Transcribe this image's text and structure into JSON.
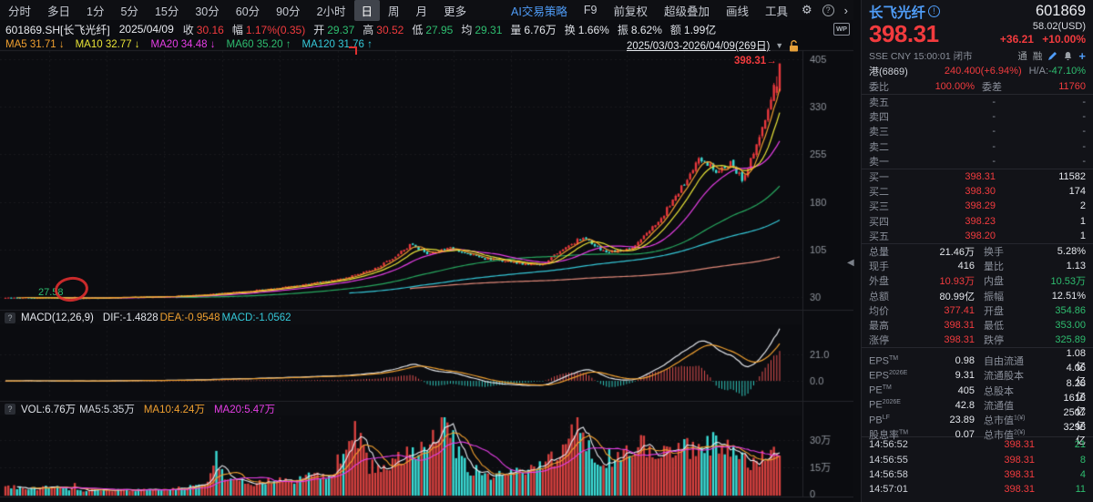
{
  "colors": {
    "red": "#f23b3e",
    "green": "#2ebd6f",
    "up_candle": "#e8383d",
    "down_candle": "#3bdcd6",
    "ma5": "#f0a030",
    "ma10": "#e8e337",
    "ma20": "#e53ee5",
    "ma60": "#27a85f",
    "ma120": "#35c8d8",
    "ma_long": "#e08878",
    "accent_blue": "#4f9cf7",
    "axis_text": "#8f949c",
    "grid": "rgba(255,255,255,0.06)"
  },
  "icons": {
    "gear": "⚙",
    "help": "?",
    "chevron": "›",
    "dropdown": "▼",
    "collapse": "◀",
    "arrow_right": "→",
    "q": "?",
    "plus": "+",
    "info": "!"
  },
  "toolbar": {
    "left": [
      {
        "label": "分时"
      },
      {
        "label": "多日"
      },
      {
        "label": "1分"
      },
      {
        "label": "5分"
      },
      {
        "label": "15分"
      },
      {
        "label": "30分"
      },
      {
        "label": "60分"
      },
      {
        "label": "90分"
      },
      {
        "label": "2小时"
      },
      {
        "label": "日",
        "active": true
      },
      {
        "label": "周"
      },
      {
        "label": "月"
      },
      {
        "label": "更多"
      }
    ],
    "right": [
      {
        "label": "AI交易策略",
        "blue": true
      },
      {
        "label": "F9"
      },
      {
        "label": "前复权"
      },
      {
        "label": "超级叠加"
      },
      {
        "label": "画线"
      },
      {
        "label": "工具"
      }
    ]
  },
  "info": {
    "symbol": "601869.SH[长飞光纤]",
    "date": "2025/04/09",
    "fields": [
      {
        "l": "收",
        "v": "30.16",
        "c": "r"
      },
      {
        "l": "幅",
        "v": "1.17%(0.35)",
        "c": "r"
      },
      {
        "l": "开",
        "v": "29.37",
        "c": "g"
      },
      {
        "l": "高",
        "v": "30.52",
        "c": "r"
      },
      {
        "l": "低",
        "v": "27.95",
        "c": "g"
      },
      {
        "l": "均",
        "v": "29.31",
        "c": "g"
      },
      {
        "l": "量",
        "v": "6.76万",
        "c": "w"
      },
      {
        "l": "换",
        "v": "1.66%",
        "c": "w"
      },
      {
        "l": "振",
        "v": "8.62%",
        "c": "w"
      },
      {
        "l": "额",
        "v": "1.99亿",
        "c": "w"
      }
    ],
    "wp": "WP"
  },
  "ma_header": {
    "items": [
      {
        "text": "MA5 31.71",
        "arrow": "↓",
        "color": "#f0a030"
      },
      {
        "text": "MA10 32.77",
        "arrow": "↓",
        "color": "#e8e337"
      },
      {
        "text": "MA20 34.48",
        "arrow": "↓",
        "color": "#e53ee5"
      },
      {
        "text": "MA60 35.20",
        "arrow": "↑",
        "color": "#2ebd6f"
      },
      {
        "text": "MA120 31.76",
        "arrow": "↑",
        "color": "#35c8d8"
      }
    ],
    "range": "2025/03/03-2026/04/09(269日)"
  },
  "macd": {
    "name": "MACD(12,26,9)",
    "dif": "DIF:-1.4828",
    "dea": "DEA:-0.9548",
    "macd": "MACD:-1.0562"
  },
  "vol": {
    "vol": "VOL:6.76万",
    "ma5": "MA5:5.35万",
    "ma10": "MA10:4.24万",
    "ma20": "MA20:5.47万"
  },
  "panel": {
    "title": "长飞光纤",
    "code": "601869",
    "price": "398.31",
    "usd": "58.02(USD)",
    "change": "+36.21",
    "change_pct": "+10.00%",
    "status": "SSE  CNY  15:00:01  闭市",
    "badge1": "通",
    "badge2": "融",
    "hk": {
      "label": "港(6869)",
      "value": "240.400(+6.94%)",
      "ha": "H/A:",
      "hav": "-47.10%"
    },
    "wb": {
      "l1": "委比",
      "v1": "100.00%",
      "l2": "委差",
      "v2": "11760"
    },
    "asks": [
      [
        "卖五",
        "-",
        "-"
      ],
      [
        "卖四",
        "-",
        "-"
      ],
      [
        "卖三",
        "-",
        "-"
      ],
      [
        "卖二",
        "-",
        "-"
      ],
      [
        "卖一",
        "-",
        "-"
      ]
    ],
    "bids": [
      [
        "买一",
        "398.31",
        "11582"
      ],
      [
        "买二",
        "398.30",
        "174"
      ],
      [
        "买三",
        "398.29",
        "2"
      ],
      [
        "买四",
        "398.23",
        "1"
      ],
      [
        "买五",
        "398.20",
        "1"
      ]
    ],
    "stats": [
      [
        "总量",
        "21.46万",
        "w",
        "换手",
        "5.28%",
        "w"
      ],
      [
        "现手",
        "416",
        "w",
        "量比",
        "1.13",
        "w"
      ],
      [
        "外盘",
        "10.93万",
        "r",
        "内盘",
        "10.53万",
        "g"
      ],
      [
        "总额",
        "80.99亿",
        "w",
        "振幅",
        "12.51%",
        "w"
      ],
      [
        "均价",
        "377.41",
        "r",
        "开盘",
        "354.86",
        "g"
      ],
      [
        "最高",
        "398.31",
        "r",
        "最低",
        "353.00",
        "g"
      ],
      [
        "涨停",
        "398.31",
        "r",
        "跌停",
        "325.89",
        "g"
      ]
    ],
    "fins": [
      [
        "EPS",
        "TM",
        "0.98",
        "自由流通",
        "",
        "1.08亿"
      ],
      [
        "EPS",
        "2026E",
        "9.31",
        "流通股本",
        "",
        "4.06亿"
      ],
      [
        "PE",
        "TM",
        "405",
        "总股本",
        "",
        "8.28亿"
      ],
      [
        "PE",
        "2026E",
        "42.8",
        "流通值",
        "",
        "1618亿"
      ],
      [
        "PB",
        "LF",
        "23.89",
        "总市值",
        "1(¥)",
        "2507亿"
      ],
      [
        "股息率",
        "TM",
        "0.07",
        "总市值",
        "2(¥)",
        "3298亿"
      ]
    ],
    "ticks": [
      [
        "14:56:52",
        "398.31",
        "21"
      ],
      [
        "14:56:55",
        "398.31",
        "8"
      ],
      [
        "14:56:58",
        "398.31",
        "4"
      ],
      [
        "14:57:01",
        "398.31",
        "11"
      ]
    ]
  },
  "chart_data": {
    "type": "candlestick",
    "title": "601869.SH 长飞光纤 日K 前复权",
    "date_range": "2025/03/03-2026/04/09",
    "num_candles": 269,
    "price_ticks": [
      405,
      330,
      255,
      180,
      105,
      30
    ],
    "macd_ticks": [
      21.0,
      0.0
    ],
    "vol_ticks": [
      "30万",
      "15万",
      "0"
    ],
    "vol_max_wan": 42,
    "close_anchors": [
      [
        0,
        29.3
      ],
      [
        0.05,
        28.6
      ],
      [
        0.09,
        27.9
      ],
      [
        0.14,
        29.2
      ],
      [
        0.2,
        30.2
      ],
      [
        0.26,
        33.5
      ],
      [
        0.32,
        40
      ],
      [
        0.38,
        48
      ],
      [
        0.44,
        60
      ],
      [
        0.48,
        76
      ],
      [
        0.505,
        95
      ],
      [
        0.523,
        112
      ],
      [
        0.545,
        99
      ],
      [
        0.575,
        107
      ],
      [
        0.62,
        90
      ],
      [
        0.66,
        84
      ],
      [
        0.69,
        80
      ],
      [
        0.72,
        104
      ],
      [
        0.745,
        124
      ],
      [
        0.775,
        101
      ],
      [
        0.8,
        104
      ],
      [
        0.815,
        112
      ],
      [
        0.85,
        160
      ],
      [
        0.879,
        215
      ],
      [
        0.897,
        250
      ],
      [
        0.917,
        230
      ],
      [
        0.937,
        240
      ],
      [
        0.952,
        216
      ],
      [
        0.967,
        255
      ],
      [
        0.979,
        300
      ],
      [
        0.991,
        350
      ],
      [
        1,
        398.31
      ]
    ],
    "vol_anchors_wan": [
      [
        0,
        5
      ],
      [
        0.03,
        3.5
      ],
      [
        0.06,
        4.5
      ],
      [
        0.09,
        3
      ],
      [
        0.15,
        2.8
      ],
      [
        0.21,
        3.2
      ],
      [
        0.26,
        6
      ],
      [
        0.272,
        24
      ],
      [
        0.285,
        8
      ],
      [
        0.32,
        7
      ],
      [
        0.38,
        9
      ],
      [
        0.42,
        12
      ],
      [
        0.448,
        30
      ],
      [
        0.455,
        34
      ],
      [
        0.47,
        15
      ],
      [
        0.5,
        18
      ],
      [
        0.53,
        24
      ],
      [
        0.567,
        36
      ],
      [
        0.6,
        14
      ],
      [
        0.63,
        10
      ],
      [
        0.66,
        13
      ],
      [
        0.69,
        16
      ],
      [
        0.72,
        24
      ],
      [
        0.737,
        38
      ],
      [
        0.76,
        18
      ],
      [
        0.79,
        22
      ],
      [
        0.82,
        26
      ],
      [
        0.85,
        22
      ],
      [
        0.88,
        27
      ],
      [
        0.9,
        24
      ],
      [
        0.92,
        29
      ],
      [
        0.94,
        22
      ],
      [
        0.96,
        16
      ],
      [
        0.98,
        22
      ],
      [
        1,
        21.46
      ]
    ],
    "fixed_candles": [
      {
        "i": 22,
        "o": 28.4,
        "h": 29.1,
        "l": 27.58,
        "c": 28.1
      },
      {
        "i": 24,
        "o": 29.37,
        "h": 30.52,
        "l": 27.95,
        "c": 30.16
      },
      {
        "i": 268,
        "o": 354.86,
        "h": 398.31,
        "l": 353.0,
        "c": 398.31
      }
    ],
    "prev_close_forced": 362.1,
    "last_price_label": "398.31",
    "low_label": "27.58"
  }
}
